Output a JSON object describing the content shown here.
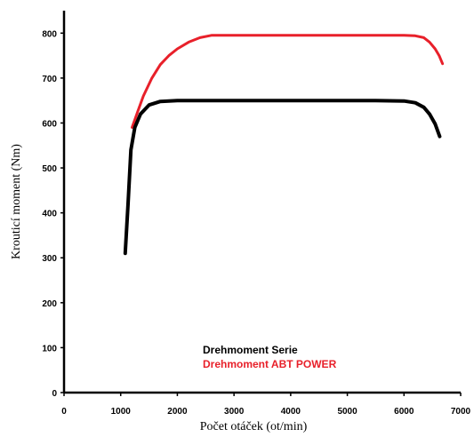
{
  "chart_data": {
    "type": "line",
    "title": "",
    "xlabel": "Počet otáček (ot/min)",
    "ylabel": "Krouticí moment (Nm)",
    "xlim": [
      0,
      7000
    ],
    "ylim": [
      0,
      850
    ],
    "x_ticks": [
      0,
      1000,
      2000,
      3000,
      4000,
      5000,
      6000,
      7000
    ],
    "y_ticks": [
      0,
      100,
      200,
      300,
      400,
      500,
      600,
      700,
      800
    ],
    "grid": false,
    "legend_position": "bottom-center",
    "series": [
      {
        "name": "Drehmoment Serie",
        "color": "#000000",
        "points": [
          [
            1080,
            310
          ],
          [
            1130,
            420
          ],
          [
            1180,
            540
          ],
          [
            1250,
            590
          ],
          [
            1350,
            620
          ],
          [
            1500,
            640
          ],
          [
            1700,
            648
          ],
          [
            2000,
            650
          ],
          [
            3000,
            650
          ],
          [
            4000,
            650
          ],
          [
            5000,
            650
          ],
          [
            5500,
            650
          ],
          [
            6000,
            649
          ],
          [
            6200,
            645
          ],
          [
            6350,
            635
          ],
          [
            6450,
            620
          ],
          [
            6550,
            598
          ],
          [
            6630,
            570
          ]
        ]
      },
      {
        "name": "Drehmoment ABT POWER",
        "color": "#e8202a",
        "points": [
          [
            1200,
            590
          ],
          [
            1300,
            625
          ],
          [
            1400,
            660
          ],
          [
            1550,
            700
          ],
          [
            1700,
            730
          ],
          [
            1850,
            750
          ],
          [
            2000,
            765
          ],
          [
            2200,
            780
          ],
          [
            2400,
            790
          ],
          [
            2600,
            795
          ],
          [
            3000,
            795
          ],
          [
            4000,
            795
          ],
          [
            5000,
            795
          ],
          [
            6000,
            795
          ],
          [
            6200,
            794
          ],
          [
            6350,
            790
          ],
          [
            6450,
            780
          ],
          [
            6550,
            765
          ],
          [
            6620,
            750
          ],
          [
            6680,
            732
          ]
        ]
      }
    ]
  }
}
